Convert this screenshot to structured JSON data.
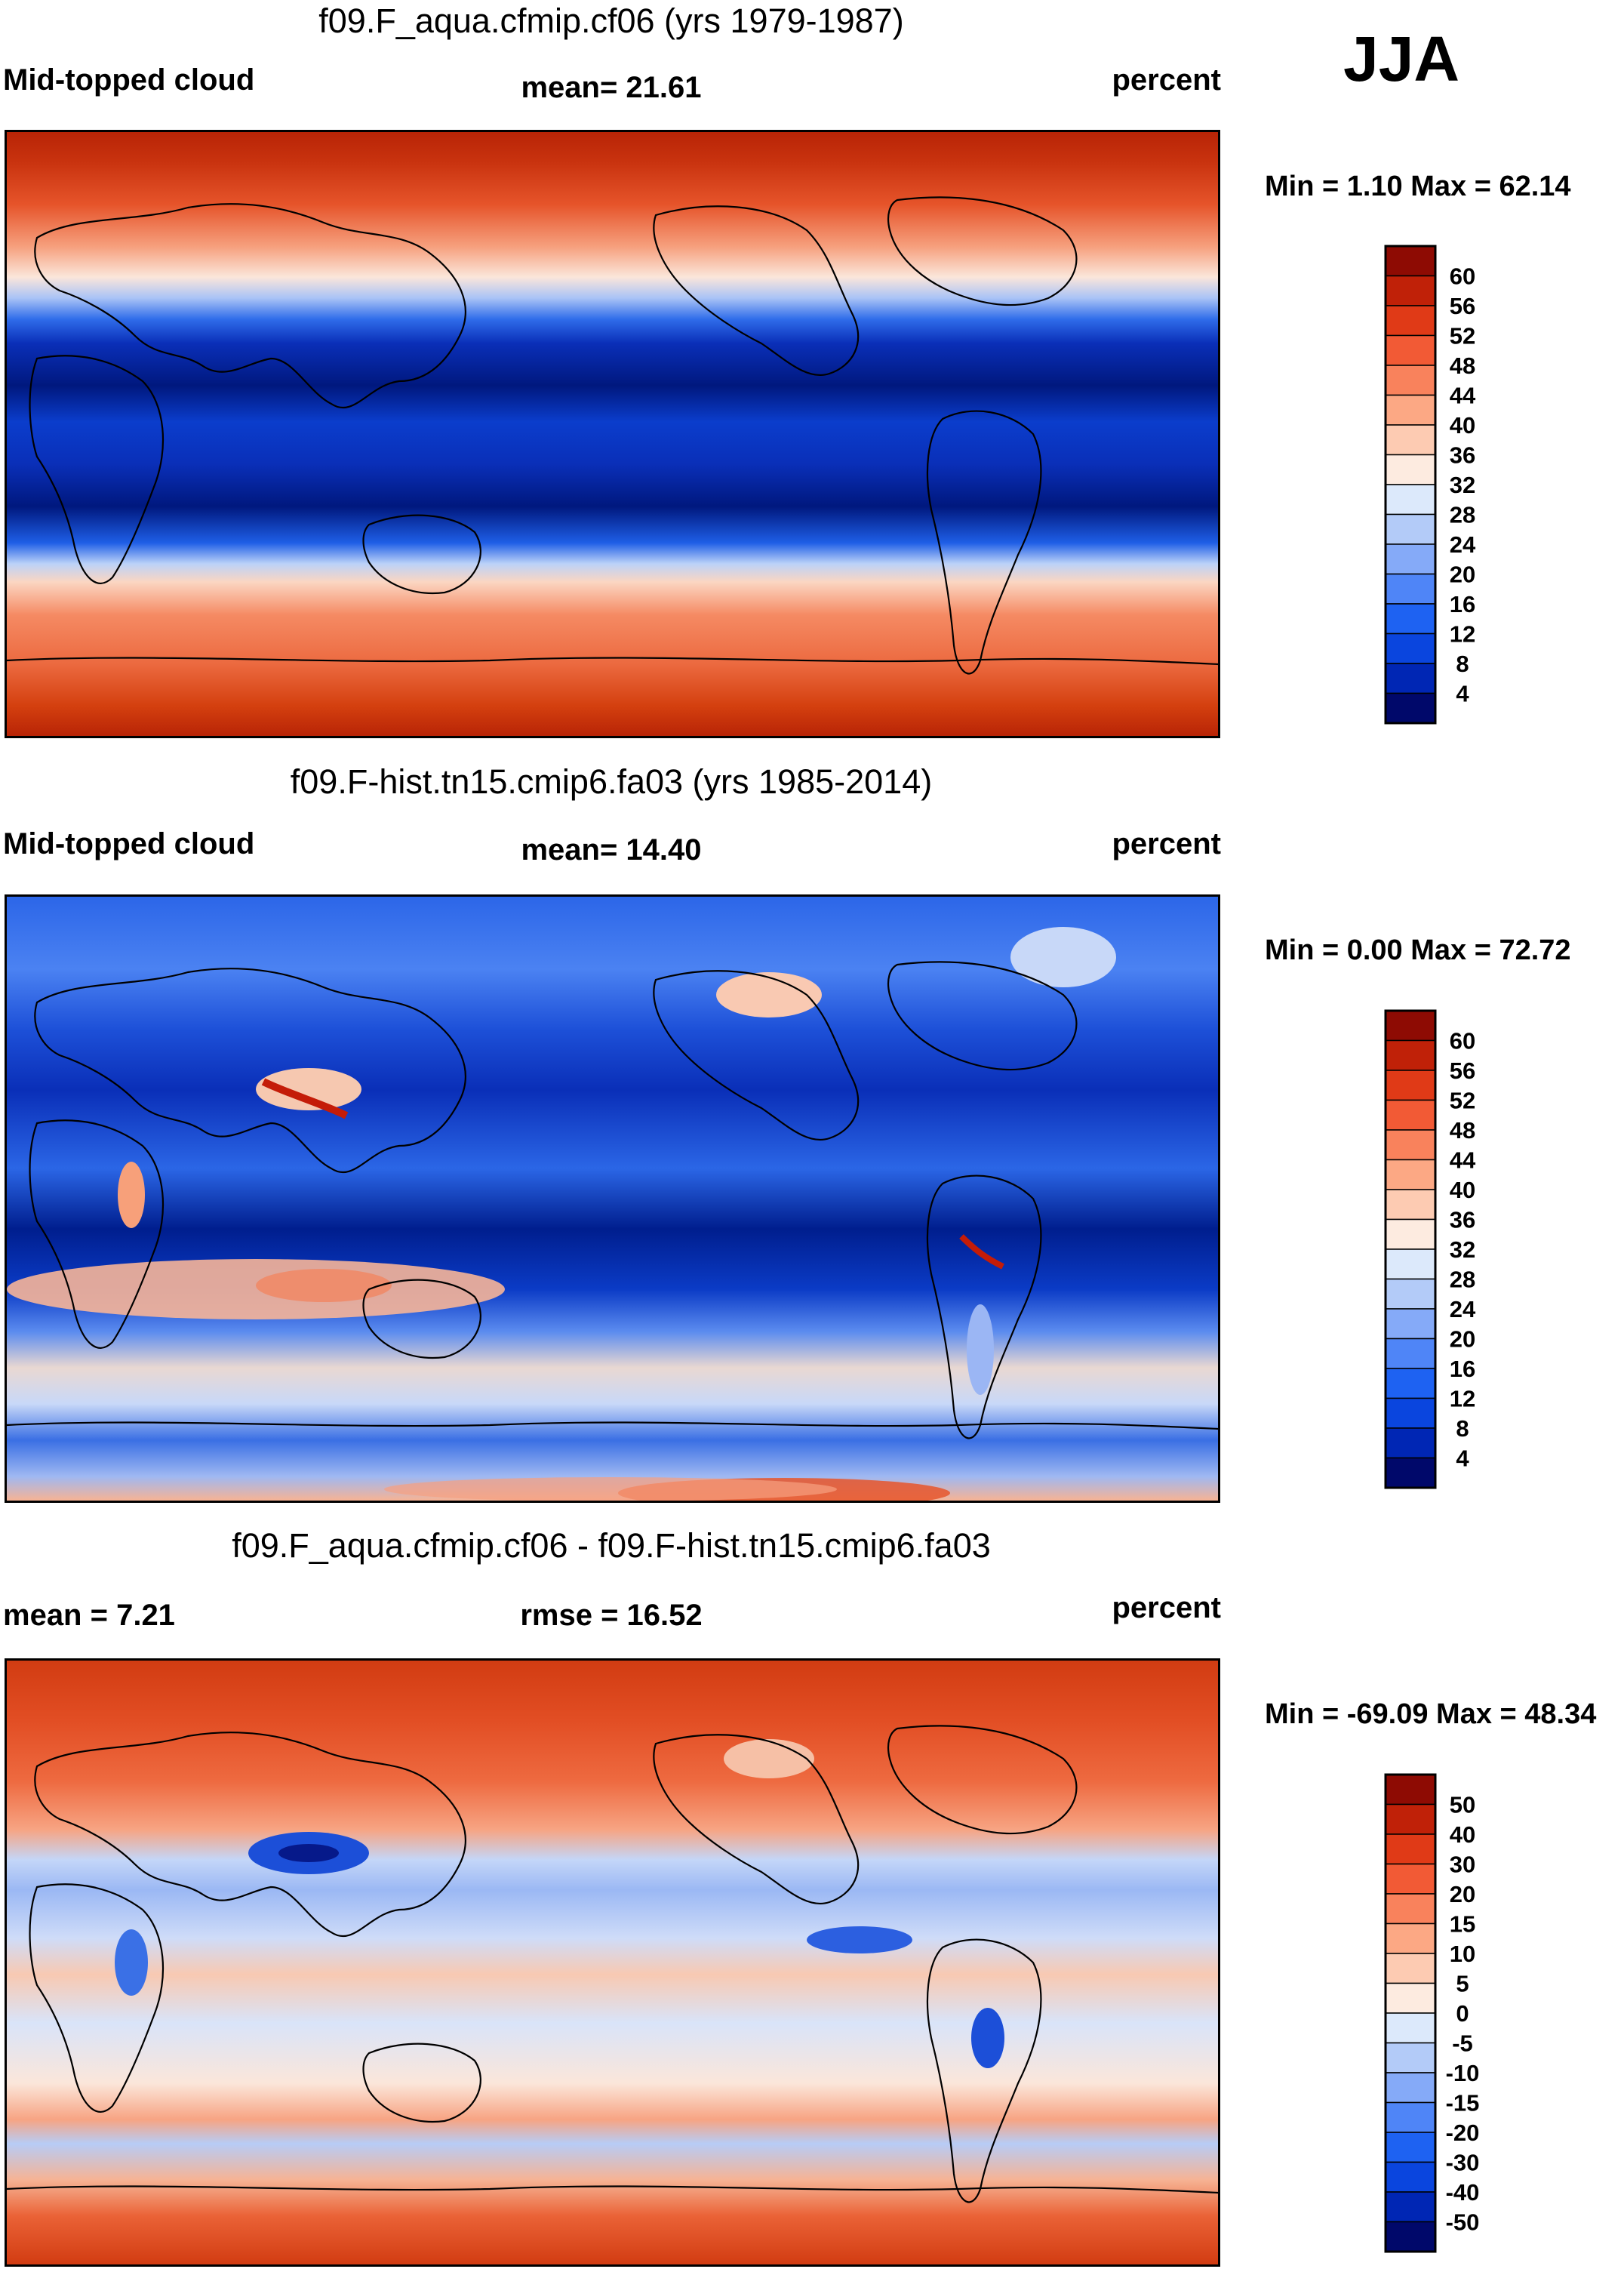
{
  "season": "JJA",
  "colors": {
    "abs_scale": [
      "#00086a",
      "#0026b4",
      "#0a45de",
      "#1e62f2",
      "#4f85f7",
      "#85aaf8",
      "#b3cbf8",
      "#dce9fb",
      "#fdebe0",
      "#fdcbb2",
      "#fca884",
      "#f9825c",
      "#f25a35",
      "#e03a17",
      "#c02108",
      "#8e0b03"
    ],
    "diff_scale": [
      "#00086a",
      "#0026b4",
      "#0a45de",
      "#1e62f2",
      "#4f85f7",
      "#85aaf8",
      "#b3cbf8",
      "#dce9fb",
      "#fdebe0",
      "#fdcbb2",
      "#fca884",
      "#f9825c",
      "#f25a35",
      "#e03a17",
      "#c02108",
      "#8e0b03"
    ]
  },
  "panels": [
    {
      "title": "f09.F_aqua.cfmip.cf06 (yrs 1979-1987)",
      "left_label": "Mid-topped cloud",
      "center_label": "mean=  21.61",
      "right_label": "percent",
      "minmax": "Min =   1.10 Max =  62.14",
      "colorbar_ticks": [
        "60",
        "56",
        "52",
        "48",
        "44",
        "40",
        "36",
        "32",
        "28",
        "24",
        "20",
        "16",
        "12",
        "8",
        "4"
      ]
    },
    {
      "title": "f09.F-hist.tn15.cmip6.fa03 (yrs 1985-2014)",
      "left_label": "Mid-topped cloud",
      "center_label": "mean=  14.40",
      "right_label": "percent",
      "minmax": "Min =   0.00 Max =  72.72",
      "colorbar_ticks": [
        "60",
        "56",
        "52",
        "48",
        "44",
        "40",
        "36",
        "32",
        "28",
        "24",
        "20",
        "16",
        "12",
        "8",
        "4"
      ]
    },
    {
      "title": "f09.F_aqua.cfmip.cf06 - f09.F-hist.tn15.cmip6.fa03",
      "left_label": "mean =   7.21",
      "center_label": "rmse =  16.52",
      "right_label": "percent",
      "minmax": "Min = -69.09 Max =  48.34",
      "colorbar_ticks": [
        "50",
        "40",
        "30",
        "20",
        "15",
        "10",
        "5",
        "0",
        "-5",
        "-10",
        "-15",
        "-20",
        "-30",
        "-40",
        "-50"
      ]
    }
  ]
}
